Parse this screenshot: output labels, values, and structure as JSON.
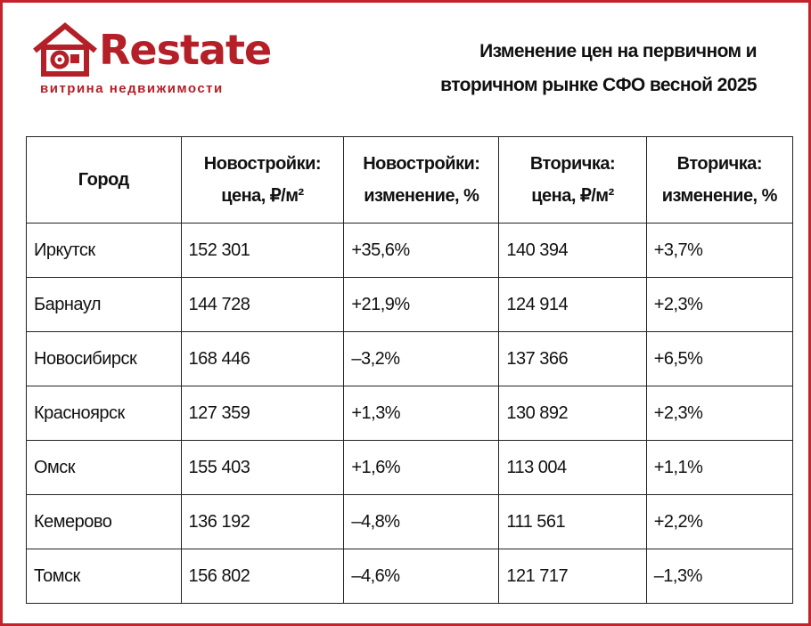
{
  "logo": {
    "name": "Restate",
    "tagline": "витрина недвижимости"
  },
  "title_lines": [
    "Изменение цен на первичном и",
    "вторичном рынке СФО весной 2025"
  ],
  "table": {
    "headers": [
      "Город",
      "Новостройки: цена, ₽/м²",
      "Новостройки: изменение, %",
      "Вторичка: цена, ₽/м²",
      "Вторичка: изменение, %"
    ],
    "rows": [
      [
        "Иркутск",
        "152 301",
        "+35,6%",
        "140 394",
        "+3,7%"
      ],
      [
        "Барнаул",
        "144 728",
        "+21,9%",
        "124 914",
        "+2,3%"
      ],
      [
        "Новосибирск",
        "168 446",
        "–3,2%",
        "137 366",
        "+6,5%"
      ],
      [
        "Красноярск",
        "127 359",
        "+1,3%",
        "130 892",
        "+2,3%"
      ],
      [
        "Омск",
        "155 403",
        "+1,6%",
        "113 004",
        "+1,1%"
      ],
      [
        "Кемерово",
        "136 192",
        "–4,8%",
        "111 561",
        "+2,2%"
      ],
      [
        "Томск",
        "156 802",
        "–4,6%",
        "121 717",
        "–1,3%"
      ]
    ]
  }
}
